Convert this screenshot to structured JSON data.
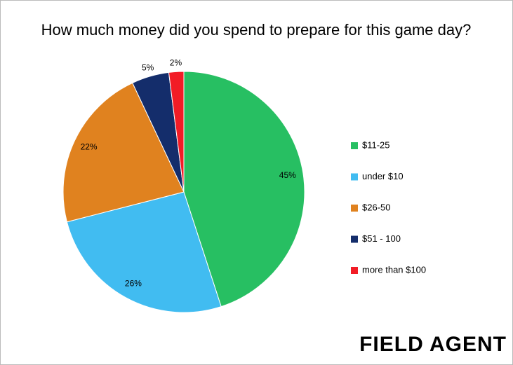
{
  "chart_data": {
    "type": "pie",
    "title": "How much money did you spend to prepare for this game day?",
    "categories": [
      "$11-25",
      "under $10",
      "$26-50",
      "$51 - 100",
      "more than $100"
    ],
    "values": [
      45,
      26,
      22,
      5,
      2
    ],
    "value_labels": [
      "45%",
      "26%",
      "22%",
      "5%",
      "2%"
    ],
    "colors": [
      "#27bf62",
      "#41bcf1",
      "#e0821f",
      "#142d6b",
      "#f21c26"
    ],
    "legend": "right"
  },
  "logo": "FIELD AGENT"
}
